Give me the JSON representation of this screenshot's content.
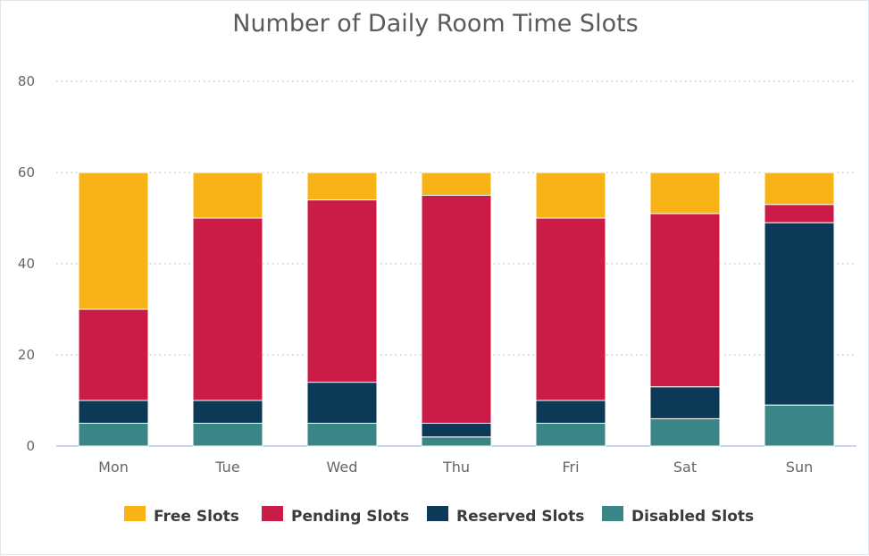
{
  "chart_data": {
    "type": "bar",
    "stacked": true,
    "title": "Number of Daily Room Time Slots",
    "xlabel": "",
    "ylabel": "",
    "categories": [
      "Mon",
      "Tue",
      "Wed",
      "Thu",
      "Fri",
      "Sat",
      "Sun"
    ],
    "ylim": [
      0,
      80
    ],
    "yticks": [
      0,
      20,
      40,
      60,
      80
    ],
    "grid": true,
    "legend_position": "bottom",
    "series": [
      {
        "name": "Disabled Slots",
        "color": "#3a8585",
        "values": [
          5,
          5,
          5,
          2,
          5,
          6,
          9
        ]
      },
      {
        "name": "Reserved Slots",
        "color": "#0b3956",
        "values": [
          5,
          5,
          9,
          3,
          5,
          7,
          40
        ]
      },
      {
        "name": "Pending Slots",
        "color": "#cb1c47",
        "values": [
          20,
          40,
          40,
          50,
          40,
          38,
          4
        ]
      },
      {
        "name": "Free Slots",
        "color": "#f8b416",
        "values": [
          30,
          10,
          6,
          5,
          10,
          9,
          7
        ]
      }
    ],
    "legend_order": [
      "Free Slots",
      "Pending Slots",
      "Reserved Slots",
      "Disabled Slots"
    ]
  }
}
